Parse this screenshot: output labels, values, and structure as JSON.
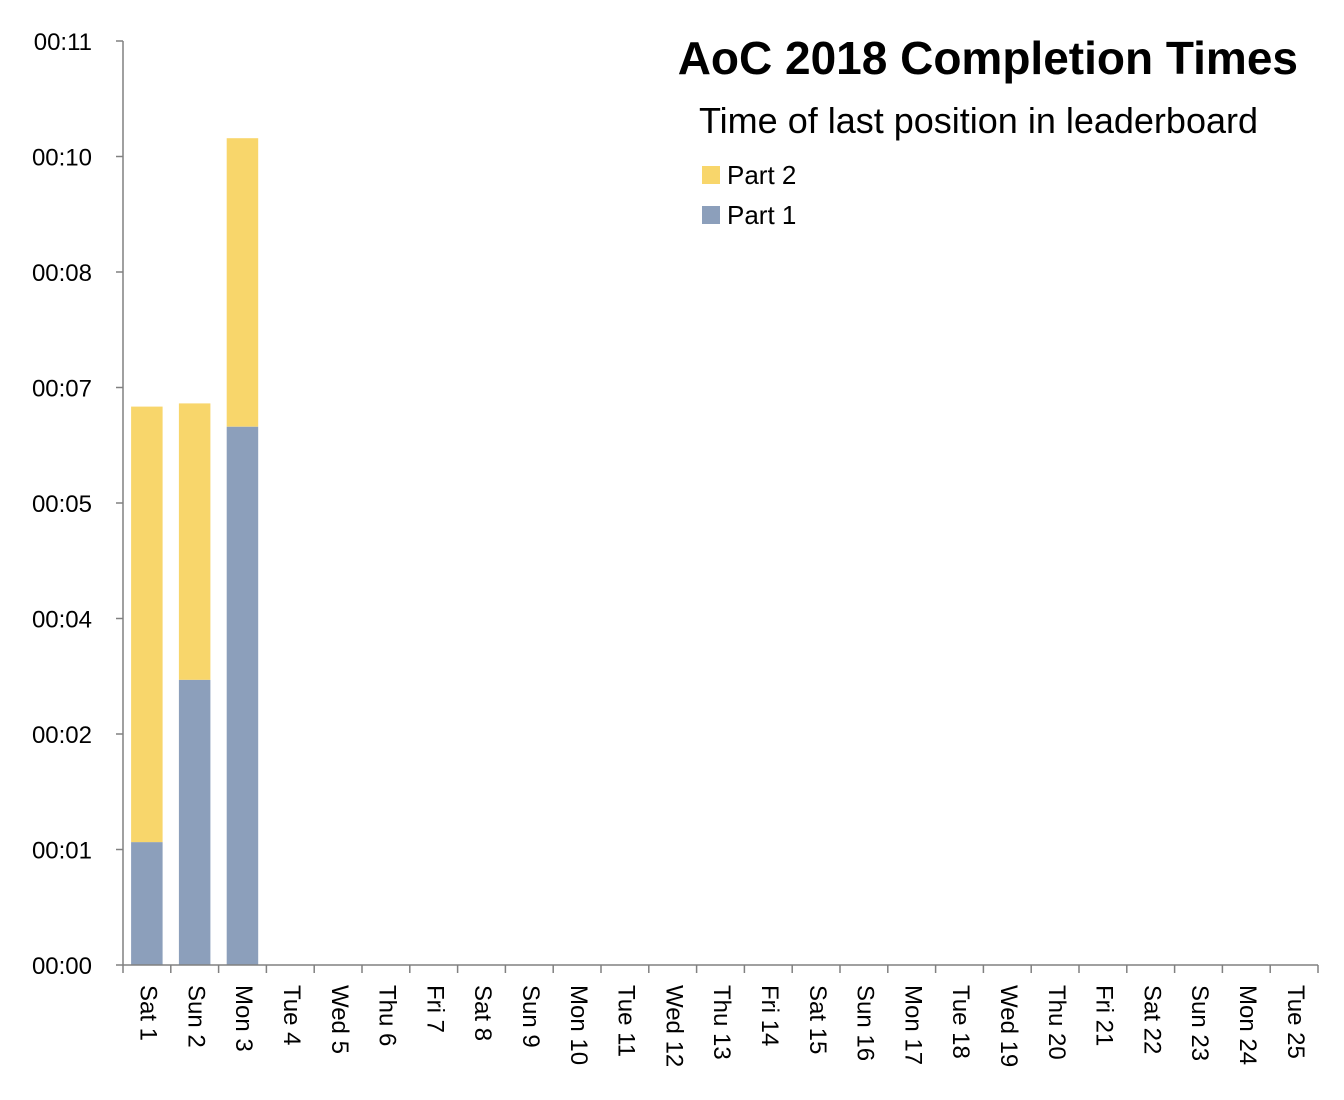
{
  "chart_data": {
    "type": "bar",
    "stacked": true,
    "title": "AoC 2018 Completion Times",
    "subtitle": "Time of last position in leaderboard",
    "legend_position": "top-right",
    "grid": false,
    "categories": [
      "Sat 1",
      "Sun 2",
      "Mon 3",
      "Tue 4",
      "Wed 5",
      "Thu 6",
      "Fri 7",
      "Sat 8",
      "Sun 9",
      "Mon 10",
      "Tue 11",
      "Wed 12",
      "Thu 13",
      "Fri 14",
      "Sat 15",
      "Sun 16",
      "Mon 17",
      "Tue 18",
      "Wed 19",
      "Thu 20",
      "Fri 21",
      "Sat 22",
      "Sun 23",
      "Mon 24",
      "Tue 25"
    ],
    "y_unit": "minutes",
    "ylim": [
      0,
      11.5
    ],
    "y_ticks": [
      0,
      1.4375,
      2.875,
      4.3125,
      5.75,
      7.1875,
      8.625,
      10.0625,
      11.5
    ],
    "y_tick_labels": [
      "00:00",
      "00:01",
      "00:02",
      "00:04",
      "00:05",
      "00:07",
      "00:08",
      "00:10",
      "00:11"
    ],
    "series": [
      {
        "name": "Part 1",
        "color": "#8c9fbb",
        "values": [
          1.53,
          3.55,
          6.7,
          null,
          null,
          null,
          null,
          null,
          null,
          null,
          null,
          null,
          null,
          null,
          null,
          null,
          null,
          null,
          null,
          null,
          null,
          null,
          null,
          null,
          null
        ]
      },
      {
        "name": "Part 2",
        "color": "#f8d66b",
        "values": [
          5.42,
          3.44,
          3.59,
          null,
          null,
          null,
          null,
          null,
          null,
          null,
          null,
          null,
          null,
          null,
          null,
          null,
          null,
          null,
          null,
          null,
          null,
          null,
          null,
          null,
          null
        ]
      }
    ]
  }
}
